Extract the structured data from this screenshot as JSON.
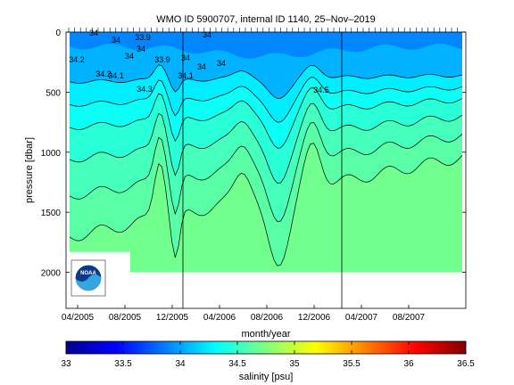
{
  "chart_data": {
    "type": "heatmap",
    "title": "WMO ID 5900707, internal ID 1140, 25–Nov–2019",
    "xlabel": "month/year",
    "ylabel": "pressure [dbar]",
    "x_tick_labels": [
      "04/2005",
      "08/2005",
      "12/2005",
      "04/2006",
      "08/2006",
      "12/2006",
      "04/2007",
      "08/2007"
    ],
    "y_ticks": [
      0,
      500,
      1000,
      1500,
      2000
    ],
    "ylim": [
      2300,
      0
    ],
    "y_reversed": true,
    "grid": false,
    "colorbar": {
      "label": "salinity [psu]",
      "ticks": [
        "33",
        "33.5",
        "34",
        "34.5",
        "35",
        "35.5",
        "36",
        "36.5"
      ],
      "range": [
        33,
        36.5
      ],
      "colormap": "jet"
    },
    "contour_labels": [
      "34.2",
      "34",
      "34",
      "34",
      "34",
      "33.9",
      "33.9",
      "34",
      "34",
      "34",
      "34",
      "34.1",
      "34.2",
      "34.1",
      "34.3",
      "34.5"
    ],
    "vertical_markers": [
      "12/2005",
      "12/2006"
    ],
    "surface_salinity_range": [
      33.9,
      34.2
    ],
    "deep_salinity": 34.7,
    "logo": "NOAA"
  }
}
